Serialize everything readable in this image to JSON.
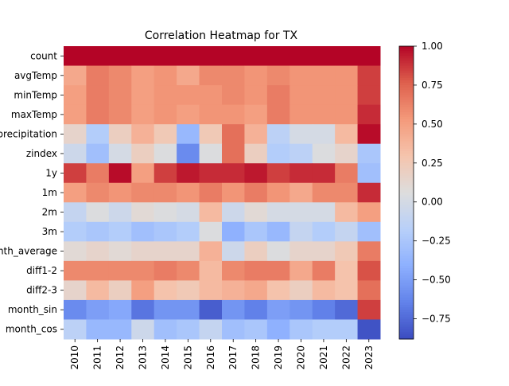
{
  "chart_data": {
    "type": "heatmap",
    "title": "Correlation Heatmap for TX",
    "xlabel": "",
    "ylabel": "",
    "colormap": "coolwarm",
    "x_categories": [
      "2010",
      "2011",
      "2012",
      "2013",
      "2014",
      "2015",
      "2016",
      "2017",
      "2018",
      "2019",
      "2020",
      "2021",
      "2022",
      "2023"
    ],
    "y_categories": [
      "count",
      "avgTemp",
      "minTemp",
      "maxTemp",
      "precipitation",
      "zindex",
      "1y",
      "1m",
      "2m",
      "3m",
      "month_average",
      "diff1-2",
      "diff2-3",
      "month_sin",
      "month_cos"
    ],
    "values": [
      [
        1.0,
        1.0,
        1.0,
        1.0,
        1.0,
        1.0,
        1.0,
        1.0,
        1.0,
        1.0,
        1.0,
        1.0,
        1.0,
        1.0
      ],
      [
        0.45,
        0.65,
        0.6,
        0.5,
        0.55,
        0.45,
        0.6,
        0.6,
        0.55,
        0.6,
        0.55,
        0.55,
        0.55,
        0.85
      ],
      [
        0.5,
        0.65,
        0.6,
        0.5,
        0.55,
        0.55,
        0.55,
        0.6,
        0.55,
        0.65,
        0.55,
        0.55,
        0.55,
        0.85
      ],
      [
        0.5,
        0.65,
        0.6,
        0.5,
        0.55,
        0.5,
        0.55,
        0.55,
        0.5,
        0.65,
        0.55,
        0.55,
        0.55,
        0.9
      ],
      [
        0.15,
        -0.2,
        0.2,
        0.4,
        0.25,
        -0.35,
        0.25,
        0.7,
        0.4,
        -0.15,
        0.0,
        0.0,
        0.35,
        0.98
      ],
      [
        -0.05,
        -0.3,
        0.0,
        0.2,
        0.05,
        -0.6,
        0.05,
        0.7,
        0.2,
        -0.2,
        -0.15,
        0.05,
        0.15,
        -0.25
      ],
      [
        0.85,
        0.65,
        0.98,
        0.5,
        0.85,
        0.95,
        0.9,
        0.9,
        0.95,
        0.85,
        0.9,
        0.9,
        0.65,
        -0.3
      ],
      [
        0.5,
        0.6,
        0.55,
        0.6,
        0.6,
        0.55,
        0.65,
        0.55,
        0.65,
        0.55,
        0.45,
        0.6,
        0.6,
        0.9
      ],
      [
        -0.1,
        0.05,
        -0.05,
        0.1,
        0.05,
        0.0,
        0.35,
        -0.05,
        0.1,
        0.0,
        0.0,
        0.0,
        0.35,
        0.5
      ],
      [
        -0.2,
        -0.25,
        -0.2,
        -0.3,
        -0.25,
        -0.2,
        0.05,
        -0.4,
        -0.25,
        -0.35,
        -0.1,
        -0.2,
        -0.1,
        -0.3
      ],
      [
        0.1,
        0.15,
        0.1,
        0.15,
        0.15,
        0.15,
        0.4,
        -0.05,
        0.2,
        0.05,
        0.15,
        0.15,
        0.25,
        0.65
      ],
      [
        0.6,
        0.6,
        0.6,
        0.6,
        0.65,
        0.6,
        0.35,
        0.6,
        0.65,
        0.65,
        0.45,
        0.65,
        0.3,
        0.8
      ],
      [
        0.15,
        0.35,
        0.2,
        0.5,
        0.3,
        0.25,
        0.35,
        0.4,
        0.45,
        0.3,
        0.2,
        0.35,
        0.3,
        0.7
      ],
      [
        -0.6,
        -0.5,
        -0.45,
        -0.7,
        -0.55,
        -0.55,
        -0.8,
        -0.55,
        -0.65,
        -0.5,
        -0.55,
        -0.65,
        -0.75,
        0.85
      ],
      [
        -0.15,
        -0.35,
        -0.35,
        -0.05,
        -0.3,
        -0.25,
        -0.1,
        -0.3,
        -0.25,
        -0.4,
        -0.25,
        -0.2,
        -0.2,
        -0.85
      ]
    ],
    "vmin": -0.88,
    "vmax": 1.0,
    "colorbar_ticks": [
      "1.00",
      "0.75",
      "0.50",
      "0.25",
      "0.00",
      "−0.25",
      "−0.50",
      "−0.75"
    ],
    "colorbar_tick_values": [
      1.0,
      0.75,
      0.5,
      0.25,
      0.0,
      -0.25,
      -0.5,
      -0.75
    ],
    "grid": false,
    "legend": "colorbar-right"
  }
}
